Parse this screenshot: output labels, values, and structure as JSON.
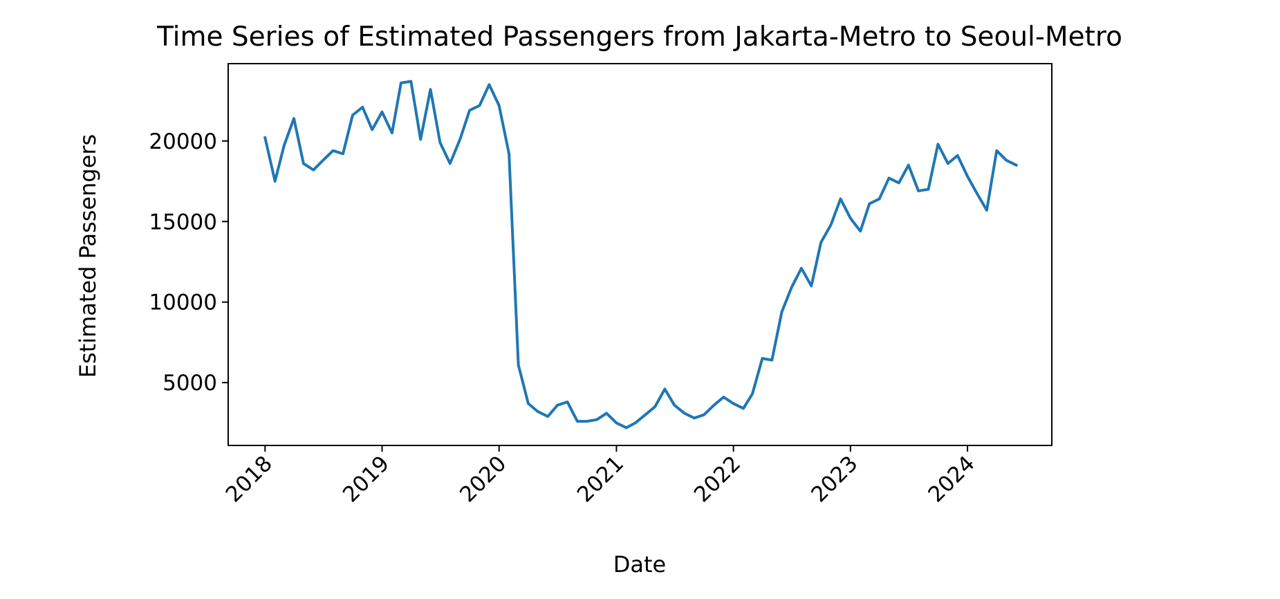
{
  "chart_data": {
    "type": "line",
    "title": "Time Series of Estimated Passengers from Jakarta-Metro to Seoul-Metro",
    "xlabel": "Date",
    "ylabel": "Estimated Passengers",
    "x_ticks": [
      "2018",
      "2019",
      "2020",
      "2021",
      "2022",
      "2023",
      "2024"
    ],
    "y_ticks": [
      5000,
      10000,
      15000,
      20000
    ],
    "xlim": [
      "2017-09-08",
      "2024-09-20"
    ],
    "ylim": [
      1100,
      24800
    ],
    "grid": false,
    "line_color": "#1f77b4",
    "series": [
      {
        "x": [
          "2018-01",
          "2018-02",
          "2018-03",
          "2018-04",
          "2018-05",
          "2018-06",
          "2018-07",
          "2018-08",
          "2018-09",
          "2018-10",
          "2018-11",
          "2018-12",
          "2019-01",
          "2019-02",
          "2019-03",
          "2019-04",
          "2019-05",
          "2019-06",
          "2019-07",
          "2019-08",
          "2019-09",
          "2019-10",
          "2019-11",
          "2019-12",
          "2020-01",
          "2020-02",
          "2020-03",
          "2020-04",
          "2020-05",
          "2020-06",
          "2020-07",
          "2020-08",
          "2020-09",
          "2020-10",
          "2020-11",
          "2020-12",
          "2021-01",
          "2021-02",
          "2021-03",
          "2021-04",
          "2021-05",
          "2021-06",
          "2021-07",
          "2021-08",
          "2021-09",
          "2021-10",
          "2021-11",
          "2021-12",
          "2022-01",
          "2022-02",
          "2022-03",
          "2022-04",
          "2022-05",
          "2022-06",
          "2022-07",
          "2022-08",
          "2022-09",
          "2022-10",
          "2022-11",
          "2022-12",
          "2023-01",
          "2023-02",
          "2023-03",
          "2023-04",
          "2023-05",
          "2023-06",
          "2023-07",
          "2023-08",
          "2023-09",
          "2023-10",
          "2023-11",
          "2023-12",
          "2024-01",
          "2024-02",
          "2024-03",
          "2024-04",
          "2024-05",
          "2024-06"
        ],
        "values": [
          20200,
          17500,
          19700,
          21400,
          18600,
          18200,
          18800,
          19400,
          19200,
          21600,
          22100,
          20700,
          21800,
          20500,
          23600,
          23700,
          20100,
          23200,
          19900,
          18600,
          20100,
          21900,
          22200,
          23500,
          22200,
          19200,
          6100,
          3700,
          3200,
          2900,
          3600,
          3800,
          2600,
          2600,
          2700,
          3100,
          2500,
          2200,
          2500,
          3000,
          3500,
          4600,
          3600,
          3100,
          2800,
          3000,
          3600,
          4100,
          3700,
          3400,
          4300,
          6500,
          6400,
          9400,
          10900,
          12100,
          11000,
          13700,
          14800,
          16400,
          15200,
          14400,
          16100,
          16400,
          17700,
          17400,
          18500,
          16900,
          17000,
          19800,
          18600,
          19100,
          17800,
          16700,
          15700,
          19400,
          18800,
          18500
        ]
      }
    ]
  }
}
